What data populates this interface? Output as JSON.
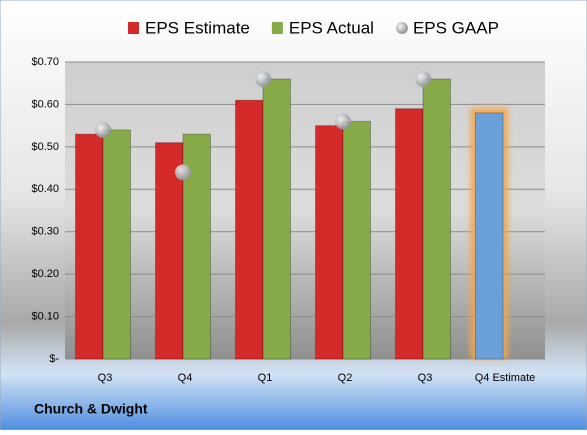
{
  "chart_data": {
    "type": "bar",
    "categories": [
      "Q3",
      "Q4",
      "Q1",
      "Q2",
      "Q3",
      "Q4 Estimate"
    ],
    "series": [
      {
        "name": "EPS Estimate",
        "color": "#d42a2a",
        "colors": [
          "#d42a2a",
          "#d42a2a",
          "#d42a2a",
          "#d42a2a",
          "#d42a2a",
          "#6b9fd9"
        ],
        "values": [
          0.53,
          0.51,
          0.61,
          0.55,
          0.59,
          0.58
        ]
      },
      {
        "name": "EPS Actual",
        "color": "#86aa48",
        "values": [
          0.54,
          0.53,
          0.66,
          0.56,
          0.66,
          null
        ]
      },
      {
        "name": "EPS GAAP",
        "type": "scatter",
        "color": "#a9aeb3",
        "values": [
          0.54,
          0.44,
          0.66,
          0.56,
          0.66,
          null
        ]
      }
    ],
    "ylim": [
      0,
      0.7
    ],
    "yticks": [
      {
        "value": 0,
        "label": "$-"
      },
      {
        "value": 0.1,
        "label": "$0.10"
      },
      {
        "value": 0.2,
        "label": "$0.20"
      },
      {
        "value": 0.3,
        "label": "$0.30"
      },
      {
        "value": 0.4,
        "label": "$0.40"
      },
      {
        "value": 0.5,
        "label": "$0.50"
      },
      {
        "value": 0.6,
        "label": "$0.60"
      },
      {
        "value": 0.7,
        "label": "$0.70"
      }
    ],
    "grid": true,
    "footer": "Church & Dwight"
  }
}
